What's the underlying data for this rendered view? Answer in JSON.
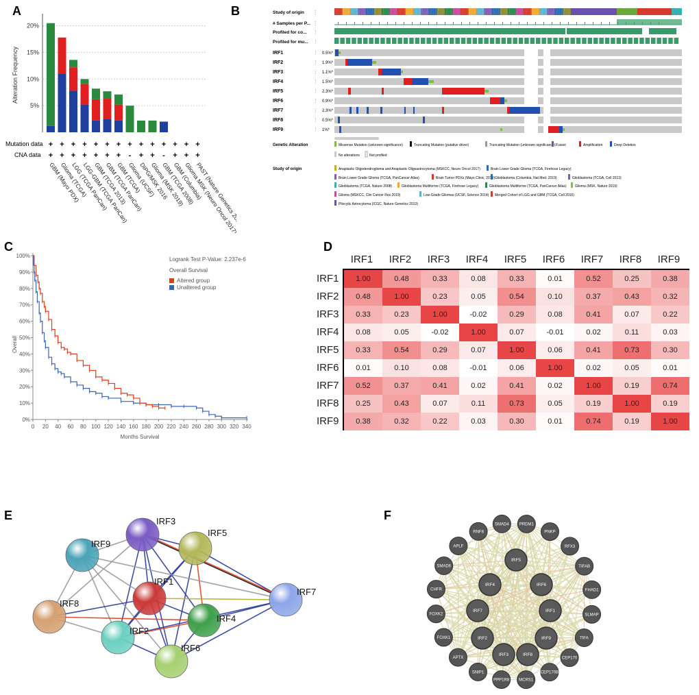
{
  "figure": {
    "panel_labels": [
      "A",
      "B",
      "C",
      "D",
      "E",
      "F"
    ]
  },
  "panelA": {
    "ylabel": "Alteration Frequency",
    "yticks": [
      "20%",
      "15%",
      "10%",
      "5%"
    ],
    "row_labels": [
      "Mutation data",
      "CNA data"
    ],
    "colors": {
      "mutation": "#2a8a3e",
      "amplification": "#e02020",
      "deep_deletion": "#1f3f9e",
      "multiple": "#8c8c8c"
    },
    "chart_data": {
      "type": "bar",
      "stacked": true,
      "ylim": [
        0,
        21.5
      ],
      "categories": [
        "GBM (Mayo PDX)",
        "Glioma (TCGA)",
        "LGG (TCGA PanCan)",
        "LGG-GBM (TCGA PanCan)",
        "GBM (TCGA 2013)",
        "GBM (TCGA PanCan)",
        "GBM (TCGA)",
        "Glioma (UCSF)",
        "DIPG/MSK 2016",
        "Glioma (MSK 2019)",
        "GBM (TCGA 2008)",
        "GBM (Columbia)",
        "Glioma MSK (Neuro Oncol 2017)",
        "PAST (Nature Genetics 2013)"
      ],
      "series": [
        {
          "key": "deep_deletion",
          "values": [
            1.2,
            11.0,
            7.8,
            5.2,
            2.2,
            2.5,
            2.2,
            0,
            0,
            0,
            2.0,
            0,
            0,
            0
          ]
        },
        {
          "key": "amplification",
          "values": [
            0,
            6.8,
            4.4,
            3.9,
            4.0,
            3.8,
            3.0,
            0,
            0,
            0,
            0,
            0,
            0,
            0
          ]
        },
        {
          "key": "mutation",
          "values": [
            19.3,
            0,
            1.4,
            0.9,
            2.0,
            1.4,
            1.9,
            5.0,
            2.2,
            2.2,
            0,
            0,
            0,
            0
          ]
        }
      ],
      "mutation_data": [
        "+",
        "+",
        "+",
        "+",
        "+",
        "+",
        "+",
        "+",
        "+",
        "+",
        "+",
        "+",
        "+",
        "+"
      ],
      "cna_data": [
        "+",
        "+",
        "+",
        "+",
        "+",
        "+",
        "+",
        "-",
        "+",
        "+",
        "-",
        "+",
        "+",
        "+"
      ]
    }
  },
  "panelB": {
    "track_labels": [
      "Study of origin",
      "# Samples per P...",
      "Profiled for co...",
      "Profiled for mu..."
    ],
    "genes": [
      "IRF1",
      "IRF2",
      "IRF3",
      "IRF4",
      "IRF5",
      "IRF6",
      "IRF7",
      "IRF8",
      "IRF9"
    ],
    "pcts": [
      "0.5%*",
      "1.9%*",
      "1.1%*",
      "1.5%*",
      "2.3%*",
      "0.9%*",
      "2.3%*",
      "0.5%*",
      "1%*"
    ],
    "legend_title": "Genetic Alteration",
    "legend_items": [
      "Missense Mutation (unknown significance)",
      "Truncating Mutation (putative driver)",
      "Truncating Mutation (unknown significance)",
      "Fusion",
      "Amplification",
      "Deep Deletion",
      "No alterations",
      "Not profiled"
    ],
    "study_title": "Study of origin",
    "studies": [
      "Anaplastic Oligodendroglioma and Anaplastic Oligoastrocytoma (MSKCC, Neuro Oncol 2017)",
      "Brain Lower Grade Glioma (TCGA, Firehose Legacy)",
      "Brain Lower Grade Glioma (TCGA, PanCancer Atlas)",
      "Brain Tumor PDXs (Mayo Clinic, 2019)",
      "Glioblastoma (Columbia, Nat Med. 2019)",
      "Glioblastoma (TCGA, Cell 2013)",
      "Glioblastoma (TCGA, Nature 2008)",
      "Glioblastoma Multiforme (TCGA, Firehose Legacy)",
      "Glioblastoma Multiforme (TCGA, PanCancer Atlas)",
      "Glioma (MSK, Nature 2019)",
      "Glioma (MSKCC, Clin Cancer Res 2019)",
      "Low-Grade Gliomas (UCSF, Science 2014)",
      "Merged Cohort of LGG and GBM (TCGA, Cell 2016)",
      "Pilocytic Astrocytoma (ICGC, Nature Genetics 2013)"
    ],
    "colors": {
      "grey": "#c9c9c9",
      "green": "#3a9a6a",
      "amp": "#e02020",
      "del": "#2050b0",
      "mis": "#7ac142"
    }
  },
  "panelC": {
    "stat_text": "Logrank Test P-Value: 2.237e-6",
    "legend_title": "Overall Survival",
    "xlabel": "Months Survival",
    "ylabel": "Overall",
    "chart_data": {
      "type": "line",
      "xlim": [
        0,
        340
      ],
      "ylim": [
        0,
        100
      ],
      "xticks": [
        0,
        20,
        40,
        60,
        80,
        100,
        120,
        140,
        160,
        180,
        200,
        220,
        240,
        260,
        280,
        300,
        320,
        340
      ],
      "yticks": [
        "0%",
        "10%",
        "20%",
        "30%",
        "40%",
        "50%",
        "60%",
        "70%",
        "80%",
        "90%",
        "100%"
      ],
      "series": [
        {
          "name": "Altered group",
          "color": "#d9401f",
          "x": [
            0,
            2,
            5,
            8,
            10,
            12,
            15,
            18,
            20,
            25,
            30,
            35,
            40,
            45,
            50,
            55,
            60,
            70,
            80,
            90,
            100,
            110,
            120,
            130,
            140,
            150,
            160,
            170,
            180,
            190,
            200,
            210
          ],
          "y": [
            100,
            94,
            88,
            84,
            80,
            77,
            72,
            69,
            66,
            61,
            55,
            51,
            47,
            44,
            43,
            41,
            40,
            36,
            33,
            30,
            26,
            24,
            22,
            19,
            16,
            15,
            13,
            10,
            9,
            8,
            7,
            7
          ]
        },
        {
          "name": "Unaltered group",
          "color": "#3a64b4",
          "x": [
            0,
            1,
            2,
            3,
            5,
            7,
            10,
            12,
            15,
            18,
            20,
            25,
            30,
            35,
            40,
            45,
            50,
            60,
            70,
            80,
            90,
            100,
            110,
            120,
            140,
            160,
            180,
            200,
            220,
            240,
            260,
            270,
            280,
            290,
            300,
            340
          ],
          "y": [
            100,
            95,
            90,
            85,
            78,
            72,
            65,
            60,
            53,
            48,
            44,
            38,
            34,
            31,
            29,
            28,
            26,
            23,
            21,
            19,
            17,
            16,
            14,
            13,
            11,
            10,
            9,
            9,
            8,
            8,
            7,
            5,
            3,
            2,
            1,
            1
          ]
        }
      ]
    }
  },
  "panelD": {
    "genes": [
      "IRF1",
      "IRF2",
      "IRF3",
      "IRF4",
      "IRF5",
      "IRF6",
      "IRF7",
      "IRF8",
      "IRF9"
    ],
    "chart_data": {
      "type": "heatmap",
      "rows": [
        "IRF1",
        "IRF2",
        "IRF3",
        "IRF4",
        "IRF5",
        "IRF6",
        "IRF7",
        "IRF8",
        "IRF9"
      ],
      "cols": [
        "IRF1",
        "IRF2",
        "IRF3",
        "IRF4",
        "IRF5",
        "IRF6",
        "IRF7",
        "IRF8",
        "IRF9"
      ],
      "values": [
        [
          "1.00",
          "0.48",
          "0.33",
          "0.08",
          "0.33",
          "0.01",
          "0.52",
          "0.25",
          "0.38"
        ],
        [
          "0.48",
          "1.00",
          "0.23",
          "0.05",
          "0.54",
          "0.10",
          "0.37",
          "0.43",
          "0.32"
        ],
        [
          "0.33",
          "0.23",
          "1.00",
          "-0.02",
          "0.29",
          "0.08",
          "0.41",
          "0.07",
          "0.22"
        ],
        [
          "0.08",
          "0.05",
          "-0.02",
          "1.00",
          "0.07",
          "-0.01",
          "0.02",
          "0.11",
          "0.03"
        ],
        [
          "0.33",
          "0.54",
          "0.29",
          "0.07",
          "1.00",
          "0.06",
          "0.41",
          "0.73",
          "0.30"
        ],
        [
          "0.01",
          "0.10",
          "0.08",
          "-0.01",
          "0.06",
          "1.00",
          "0.02",
          "0.05",
          "0.01"
        ],
        [
          "0.52",
          "0.37",
          "0.41",
          "0.02",
          "0.41",
          "0.02",
          "1.00",
          "0.19",
          "0.74"
        ],
        [
          "0.25",
          "0.43",
          "0.07",
          "0.11",
          "0.73",
          "0.05",
          "0.19",
          "1.00",
          "0.19"
        ],
        [
          "0.38",
          "0.32",
          "0.22",
          "0.03",
          "0.30",
          "0.01",
          "0.74",
          "0.19",
          "1.00"
        ]
      ]
    }
  },
  "panelE": {
    "nodes": [
      {
        "label": "IRF3",
        "color": "#7b5cc4"
      },
      {
        "label": "IRF5",
        "color": "#b4b85a"
      },
      {
        "label": "IRF9",
        "color": "#4aa3b8"
      },
      {
        "label": "IRF1",
        "color": "#cc3a3a"
      },
      {
        "label": "IRF7",
        "color": "#8ea6e8"
      },
      {
        "label": "IRF8",
        "color": "#d4a070"
      },
      {
        "label": "IRF4",
        "color": "#3fa04a"
      },
      {
        "label": "IRF2",
        "color": "#6cd0c0"
      },
      {
        "label": "IRF6",
        "color": "#a6d070"
      }
    ]
  },
  "panelF": {
    "inner_nodes": [
      "IRF5",
      "IRF4",
      "IRF6",
      "IRF7",
      "IRF1",
      "IRF2",
      "IRF9",
      "IRF3",
      "IRF8"
    ],
    "outer_nodes": [
      "PRDM1",
      "PNKP",
      "RFX3",
      "TIFAB",
      "FHAD1",
      "SLMAP",
      "TIFA",
      "CEP170",
      "CEP170B",
      "MCRS1",
      "PPP1R8",
      "SNIP1",
      "APTX",
      "FOXK1",
      "FOXK2",
      "CHFR",
      "SMAD6",
      "APLF",
      "RNF8",
      "SMAD4"
    ]
  }
}
